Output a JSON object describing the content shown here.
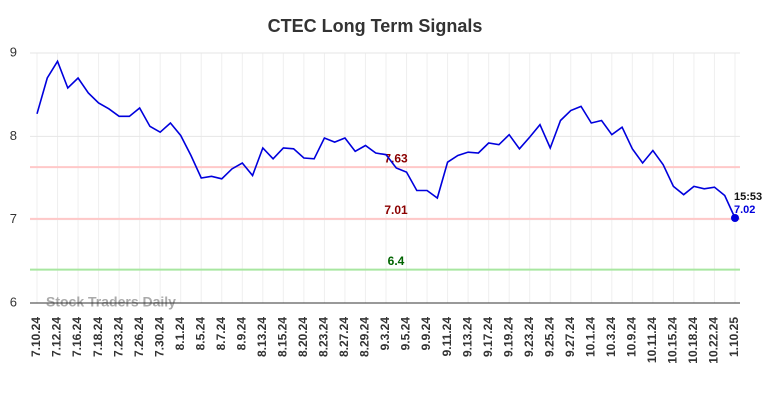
{
  "chart_data": {
    "type": "line",
    "title": "CTEC Long Term Signals",
    "watermark": "Stock Traders Daily",
    "categories": [
      "7.10.24",
      null,
      "7.12.24",
      null,
      "7.16.24",
      null,
      "7.18.24",
      null,
      "7.23.24",
      null,
      "7.26.24",
      null,
      "7.30.24",
      null,
      "8.1.24",
      null,
      "8.5.24",
      null,
      "8.7.24",
      null,
      "8.9.24",
      null,
      "8.13.24",
      null,
      "8.15.24",
      null,
      "8.20.24",
      null,
      "8.23.24",
      null,
      "8.27.24",
      null,
      "8.29.24",
      null,
      "9.3.24",
      null,
      "9.5.24",
      null,
      "9.9.24",
      null,
      "9.11.24",
      null,
      "9.13.24",
      null,
      "9.17.24",
      null,
      "9.19.24",
      null,
      "9.23.24",
      null,
      "9.25.24",
      null,
      "9.27.24",
      null,
      "10.1.24",
      null,
      "10.3.24",
      null,
      "10.9.24",
      null,
      "10.11.24",
      null,
      "10.15.24",
      null,
      "10.18.24",
      null,
      "10.22.24",
      null,
      "1.10.25"
    ],
    "values": [
      8.27,
      8.7,
      8.9,
      8.58,
      8.7,
      8.52,
      8.4,
      8.33,
      8.24,
      8.24,
      8.34,
      8.12,
      8.05,
      8.16,
      8.01,
      7.77,
      7.5,
      7.52,
      7.49,
      7.61,
      7.68,
      7.53,
      7.86,
      7.73,
      7.86,
      7.85,
      7.74,
      7.73,
      7.98,
      7.93,
      7.98,
      7.82,
      7.89,
      7.8,
      7.78,
      7.62,
      7.57,
      7.35,
      7.35,
      7.26,
      7.69,
      7.77,
      7.81,
      7.8,
      7.92,
      7.9,
      8.02,
      7.85,
      7.99,
      8.14,
      7.86,
      8.19,
      8.31,
      8.36,
      8.16,
      8.19,
      8.02,
      8.11,
      7.85,
      7.68,
      7.83,
      7.66,
      7.4,
      7.3,
      7.4,
      7.37,
      7.39,
      7.29,
      7.02
    ],
    "color": "#0000dd",
    "last_time": "15:53",
    "hlines": [
      {
        "value": 7.63,
        "color": "#ffc8c8",
        "label_color": "#8b0000"
      },
      {
        "value": 7.01,
        "color": "#ffc8c8",
        "label_color": "#8b0000"
      },
      {
        "value": 6.4,
        "color": "#a8e6a0",
        "label_color": "#006400"
      }
    ],
    "ylim": [
      6,
      9
    ],
    "yticks": [
      6,
      7,
      8,
      9
    ],
    "grid": true
  }
}
